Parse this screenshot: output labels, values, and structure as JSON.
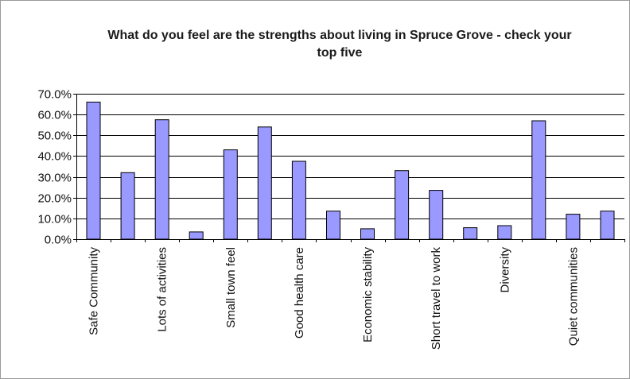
{
  "chart_data": {
    "type": "bar",
    "title": "What do you feel are the strengths about living in Spruce Grove - check your top five",
    "title_lines": [
      "What do you feel are the strengths about living in Spruce Grove - check your",
      "top five"
    ],
    "xlabel": "",
    "ylabel": "",
    "ylim": [
      0,
      0.7
    ],
    "yticks": [
      "0.0%",
      "10.0%",
      "20.0%",
      "30.0%",
      "40.0%",
      "50.0%",
      "60.0%",
      "70.0%"
    ],
    "categories": [
      "Safe Community",
      "",
      "Lots of activities",
      "",
      "Small town feel",
      "",
      "Good health care",
      "",
      "Economic stability",
      "",
      "Short travel to work",
      "",
      "Diversity",
      "",
      "Quiet communities",
      ""
    ],
    "values": [
      0.66,
      0.32,
      0.575,
      0.035,
      0.43,
      0.54,
      0.375,
      0.135,
      0.05,
      0.33,
      0.235,
      0.055,
      0.065,
      0.57,
      0.12,
      0.135
    ],
    "grid": true,
    "legend": "none",
    "colors": {
      "bar_fill": "#9999ff",
      "bar_stroke": "#000000",
      "gridline": "#000000",
      "frame": "#999999"
    }
  }
}
